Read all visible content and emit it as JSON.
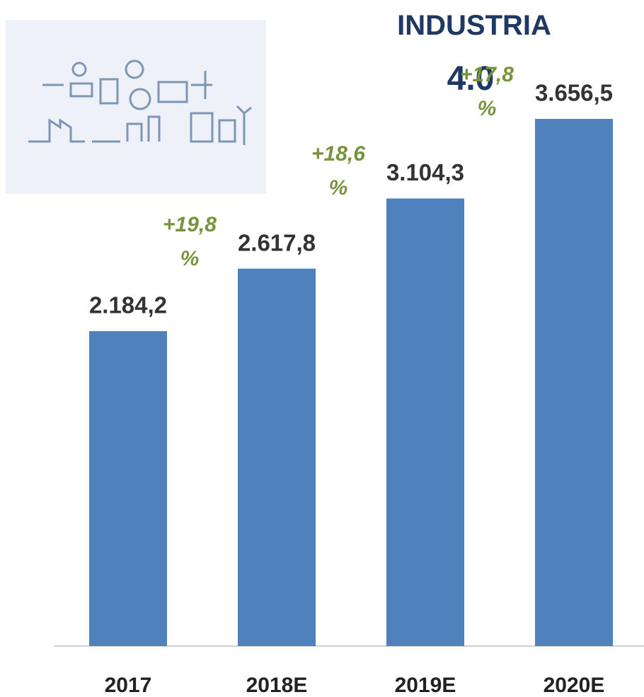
{
  "chart_data": {
    "type": "bar",
    "title": "INDUSTRIA",
    "subtitle": "4.0",
    "categories": [
      "2017",
      "2018E",
      "2019E",
      "2020E"
    ],
    "values": [
      2184.2,
      2617.8,
      3104.3,
      3656.5
    ],
    "value_labels": [
      "2.184,2",
      "2.617,8",
      "3.104,3",
      "3.656,5"
    ],
    "growth_labels": [
      null,
      "+19,8 %",
      "+18,6 %",
      "+17,8 %"
    ],
    "color": "#4f81bd",
    "growth_color": "#77933c",
    "ylim": [
      0,
      4000
    ]
  }
}
